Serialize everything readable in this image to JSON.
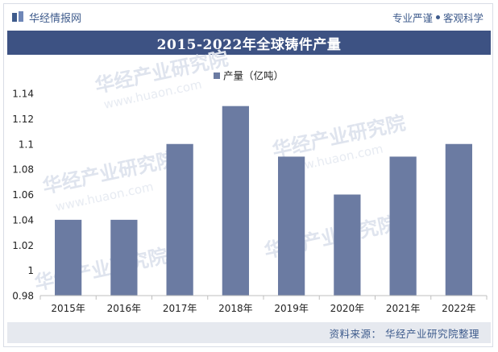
{
  "header": {
    "brand": "华经情报网",
    "slogan_left": "专业严谨",
    "slogan_right": "客观科学"
  },
  "title": "2015-2022年全球铸件产量",
  "source": "资料来源：  华经产业研究院整理",
  "watermark": {
    "cn": "华经产业研究院",
    "en": "www.huaon.com"
  },
  "colors": {
    "bar": "#6b7ba2",
    "title_bg": "#3d5283",
    "brand": "#3e5b8c"
  },
  "chart_data": {
    "type": "bar",
    "categories": [
      "2015年",
      "2016年",
      "2017年",
      "2018年",
      "2019年",
      "2020年",
      "2021年",
      "2022年"
    ],
    "series": [
      {
        "name": "产量（亿吨）",
        "values": [
          1.04,
          1.04,
          1.1,
          1.13,
          1.09,
          1.06,
          1.09,
          1.1
        ]
      }
    ],
    "ylim": [
      0.98,
      1.14
    ],
    "yticks": [
      "0.98",
      "1",
      "1.02",
      "1.04",
      "1.06",
      "1.08",
      "1.1",
      "1.12",
      "1.14"
    ],
    "legend": "top-center",
    "grid": false
  }
}
